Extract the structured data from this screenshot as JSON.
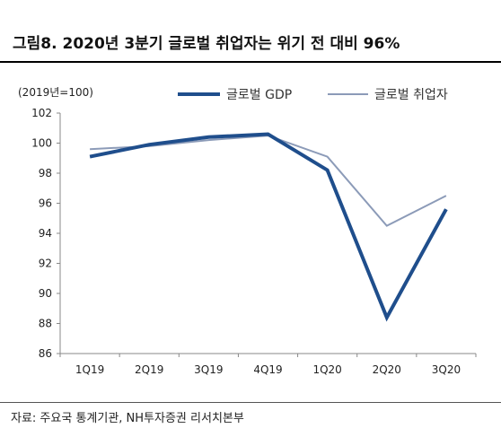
{
  "header": {
    "title": "그림8. 2020년 3분기 글로벌 취업자는 위기 전 대비 96%"
  },
  "footer": {
    "source": "자료: 주요국 통계기관, NH투자증권 리서치본부"
  },
  "chart_data": {
    "type": "line",
    "title": "그림8. 2020년 3분기 글로벌 취업자는 위기 전 대비 96%",
    "ylabel": "(2019년=100)",
    "xlabel": "",
    "categories": [
      "1Q19",
      "2Q19",
      "3Q19",
      "4Q19",
      "1Q20",
      "2Q20",
      "3Q20"
    ],
    "ylim": [
      86,
      102
    ],
    "yticks": [
      "102",
      "100",
      "98",
      "96",
      "94",
      "92",
      "90",
      "88",
      "86"
    ],
    "legend_position": "top-right",
    "grid": false,
    "series": [
      {
        "name": "글로벌 GDP",
        "values": [
          99.1,
          99.9,
          100.4,
          100.6,
          98.2,
          88.4,
          95.6
        ],
        "color": "#1f4e8c"
      },
      {
        "name": "글로벌 취업자",
        "values": [
          99.6,
          99.8,
          100.2,
          100.5,
          99.1,
          94.5,
          96.5
        ],
        "color": "#8c9bb8"
      }
    ]
  }
}
